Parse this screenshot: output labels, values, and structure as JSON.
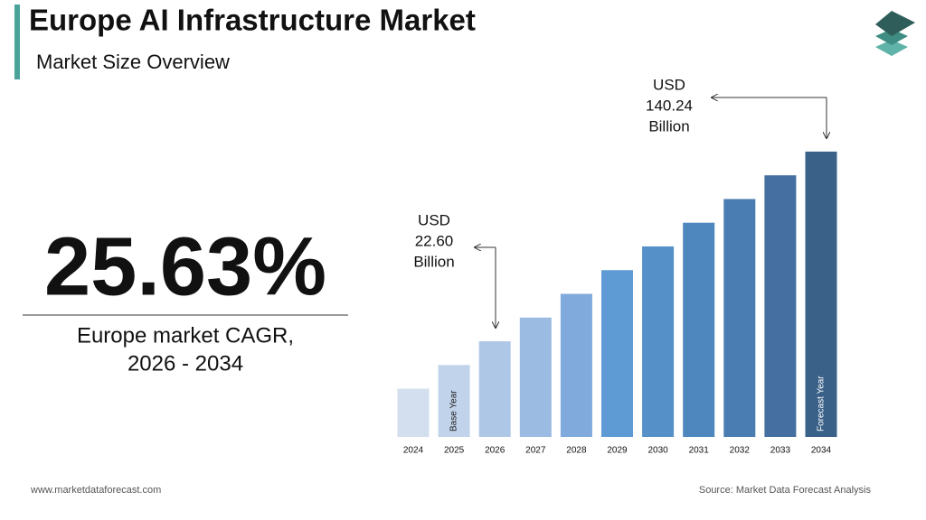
{
  "chart_data": {
    "type": "bar",
    "title": "Europe AI Infrastructure Market",
    "subtitle": "Market Size Overview",
    "kpi": "25.63%",
    "kpi_caption": [
      "Europe market CAGR,",
      "2026 - 2034"
    ],
    "categories": [
      "2024",
      "2025",
      "2026",
      "2027",
      "2028",
      "2029",
      "2030",
      "2031",
      "2032",
      "2033",
      "2034"
    ],
    "values": [
      14.32,
      17.99,
      22.6,
      28.39,
      35.67,
      44.81,
      56.3,
      70.73,
      88.86,
      111.63,
      140.24
    ],
    "colors": [
      "#d3deef",
      "#c1d3ea",
      "#afc7e6",
      "#9bbbe2",
      "#80a9dc",
      "#5e9ad4",
      "#5590c8",
      "#4e87bd",
      "#4a7db1",
      "#446fa0",
      "#3a6188"
    ],
    "bar_labels": [
      null,
      "Base Year",
      null,
      null,
      null,
      null,
      null,
      null,
      null,
      null,
      "Forecast Year"
    ],
    "annotations": [
      {
        "lines": [
          "USD",
          "22.60",
          "Billion"
        ]
      },
      {
        "lines": [
          "USD",
          "140.24",
          "Billion"
        ]
      }
    ],
    "log_scale": true,
    "ylim": [
      9,
      253
    ],
    "footer_left": "www.marketdataforecast.com",
    "footer_right": "Source: Market Data Forecast Analysis"
  }
}
